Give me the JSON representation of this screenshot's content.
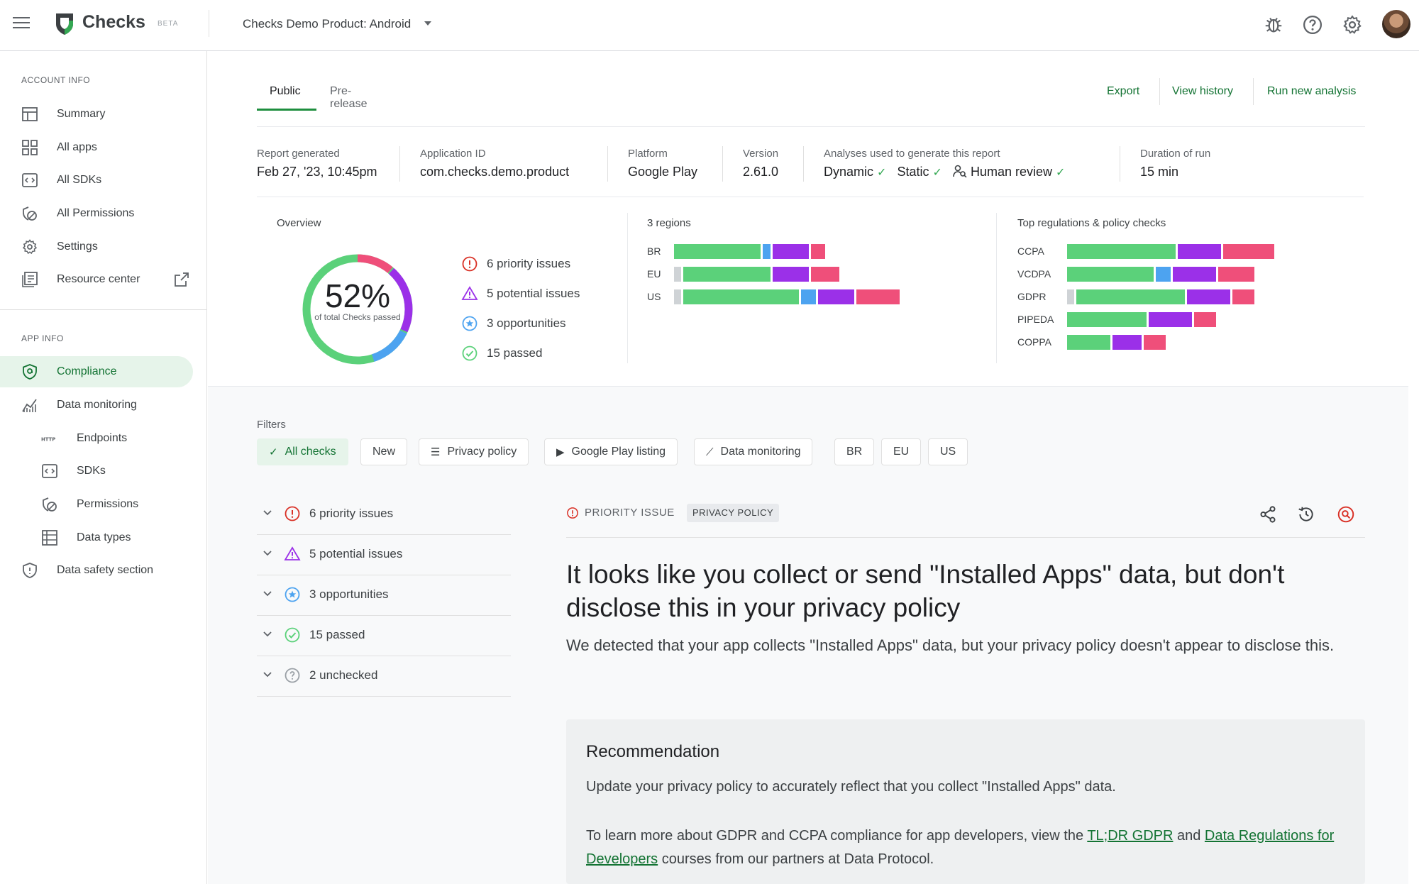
{
  "app": {
    "brand": "Checks",
    "beta": "BETA",
    "product": "Checks Demo Product: Android"
  },
  "sidebar": {
    "account_section": "ACCOUNT INFO",
    "account_items": [
      {
        "label": "Summary",
        "icon": "summary-icon"
      },
      {
        "label": "All apps",
        "icon": "apps-grid-icon"
      },
      {
        "label": "All SDKs",
        "icon": "sdk-icon"
      },
      {
        "label": "All Permissions",
        "icon": "permissions-icon"
      },
      {
        "label": "Settings",
        "icon": "gear-icon"
      },
      {
        "label": "Resource center",
        "icon": "book-icon"
      }
    ],
    "app_section": "APP INFO",
    "app_items": [
      {
        "label": "Compliance",
        "icon": "shield-icon"
      },
      {
        "label": "Data monitoring",
        "icon": "chart-icon"
      },
      {
        "label": "Endpoints",
        "icon": "http-icon"
      },
      {
        "label": "SDKs",
        "icon": "sdk-icon"
      },
      {
        "label": "Permissions",
        "icon": "permissions-icon"
      },
      {
        "label": "Data types",
        "icon": "table-icon"
      },
      {
        "label": "Data safety section",
        "icon": "shield-outline-icon"
      }
    ]
  },
  "tabs": [
    {
      "label": "Public"
    },
    {
      "label": "Pre-release"
    }
  ],
  "actions": {
    "export": "Export",
    "view_history": "View history",
    "run_new": "Run new analysis"
  },
  "meta": {
    "report_label": "Report generated",
    "report_value": "Feb 27, '23, 10:45pm",
    "appid_label": "Application ID",
    "appid_value": "com.checks.demo.product",
    "platform_label": "Platform",
    "platform_value": "Google Play",
    "version_label": "Version",
    "version_value": "2.61.0",
    "analyses_label": "Analyses used to generate this report",
    "analyses": [
      "Dynamic",
      "Static",
      "Human review"
    ],
    "duration_label": "Duration of run",
    "duration_value": "15 min"
  },
  "overview": {
    "title": "Overview",
    "percent": "52%",
    "percent_sub": "of total Checks passed",
    "items": [
      {
        "label": "6 priority issues"
      },
      {
        "label": "5 potential issues"
      },
      {
        "label": "3 opportunities"
      },
      {
        "label": "15 passed"
      }
    ]
  },
  "regions": {
    "title": "3 regions",
    "rows": [
      {
        "label": "BR",
        "segments": [
          {
            "color": "#5bd17a",
            "value": 12
          },
          {
            "color": "#4da3f0",
            "value": 1
          },
          {
            "color": "#9b30e8",
            "value": 5
          },
          {
            "color": "#ef4f7a",
            "value": 2
          }
        ]
      },
      {
        "label": "EU",
        "segments": [
          {
            "color": "#cfd3d6",
            "value": 1
          },
          {
            "color": "#5bd17a",
            "value": 12
          },
          {
            "color": "#9b30e8",
            "value": 5
          },
          {
            "color": "#ef4f7a",
            "value": 4
          }
        ]
      },
      {
        "label": "US",
        "segments": [
          {
            "color": "#cfd3d6",
            "value": 1
          },
          {
            "color": "#5bd17a",
            "value": 16
          },
          {
            "color": "#4da3f0",
            "value": 2
          },
          {
            "color": "#9b30e8",
            "value": 5
          },
          {
            "color": "#ef4f7a",
            "value": 6
          }
        ]
      }
    ]
  },
  "regulations": {
    "title": "Top regulations & policy checks",
    "rows": [
      {
        "label": "CCPA",
        "segments": [
          {
            "color": "#5bd17a",
            "value": 15
          },
          {
            "color": "#9b30e8",
            "value": 6
          },
          {
            "color": "#ef4f7a",
            "value": 7
          }
        ]
      },
      {
        "label": "VCDPA",
        "segments": [
          {
            "color": "#5bd17a",
            "value": 12
          },
          {
            "color": "#4da3f0",
            "value": 2
          },
          {
            "color": "#9b30e8",
            "value": 6
          },
          {
            "color": "#ef4f7a",
            "value": 5
          }
        ]
      },
      {
        "label": "GDPR",
        "segments": [
          {
            "color": "#cfd3d6",
            "value": 1
          },
          {
            "color": "#5bd17a",
            "value": 15
          },
          {
            "color": "#9b30e8",
            "value": 6
          },
          {
            "color": "#ef4f7a",
            "value": 3
          }
        ]
      },
      {
        "label": "PIPEDA",
        "segments": [
          {
            "color": "#5bd17a",
            "value": 11
          },
          {
            "color": "#9b30e8",
            "value": 6
          },
          {
            "color": "#ef4f7a",
            "value": 3
          }
        ]
      },
      {
        "label": "COPPA",
        "segments": [
          {
            "color": "#5bd17a",
            "value": 6
          },
          {
            "color": "#9b30e8",
            "value": 4
          },
          {
            "color": "#ef4f7a",
            "value": 3
          }
        ]
      }
    ]
  },
  "filters": {
    "label": "Filters",
    "chips": [
      {
        "label": "All checks",
        "icon": "check-icon"
      },
      {
        "label": "New"
      },
      {
        "label": "Privacy policy",
        "icon": "list-icon"
      },
      {
        "label": "Google Play listing",
        "icon": "play-icon"
      },
      {
        "label": "Data monitoring",
        "icon": "chart-icon"
      },
      {
        "label": "BR"
      },
      {
        "label": "EU"
      },
      {
        "label": "US"
      }
    ]
  },
  "accordion": [
    {
      "label": "6 priority issues"
    },
    {
      "label": "5 potential issues"
    },
    {
      "label": "3 opportunities"
    },
    {
      "label": "15 passed"
    },
    {
      "label": "2 unchecked"
    }
  ],
  "detail": {
    "issue_type": "PRIORITY ISSUE",
    "badge": "PRIVACY POLICY",
    "headline": "It looks like you collect or send \"Installed Apps\" data, but don't disclose this in your privacy policy",
    "description": "We detected that your app collects \"Installed Apps\" data, but your privacy policy doesn't appear to disclose this.",
    "rec_title": "Recommendation",
    "rec_text": "Update your privacy policy to accurately reflect that you collect \"Installed Apps\" data.",
    "learn_prefix": "To learn more about GDPR and CCPA compliance for app developers, view the ",
    "learn_link1": "TL;DR GDPR",
    "learn_and": " and ",
    "learn_link2": "Data Regulations for Developers",
    "learn_suffix": " courses from our partners at Data Protocol."
  }
}
